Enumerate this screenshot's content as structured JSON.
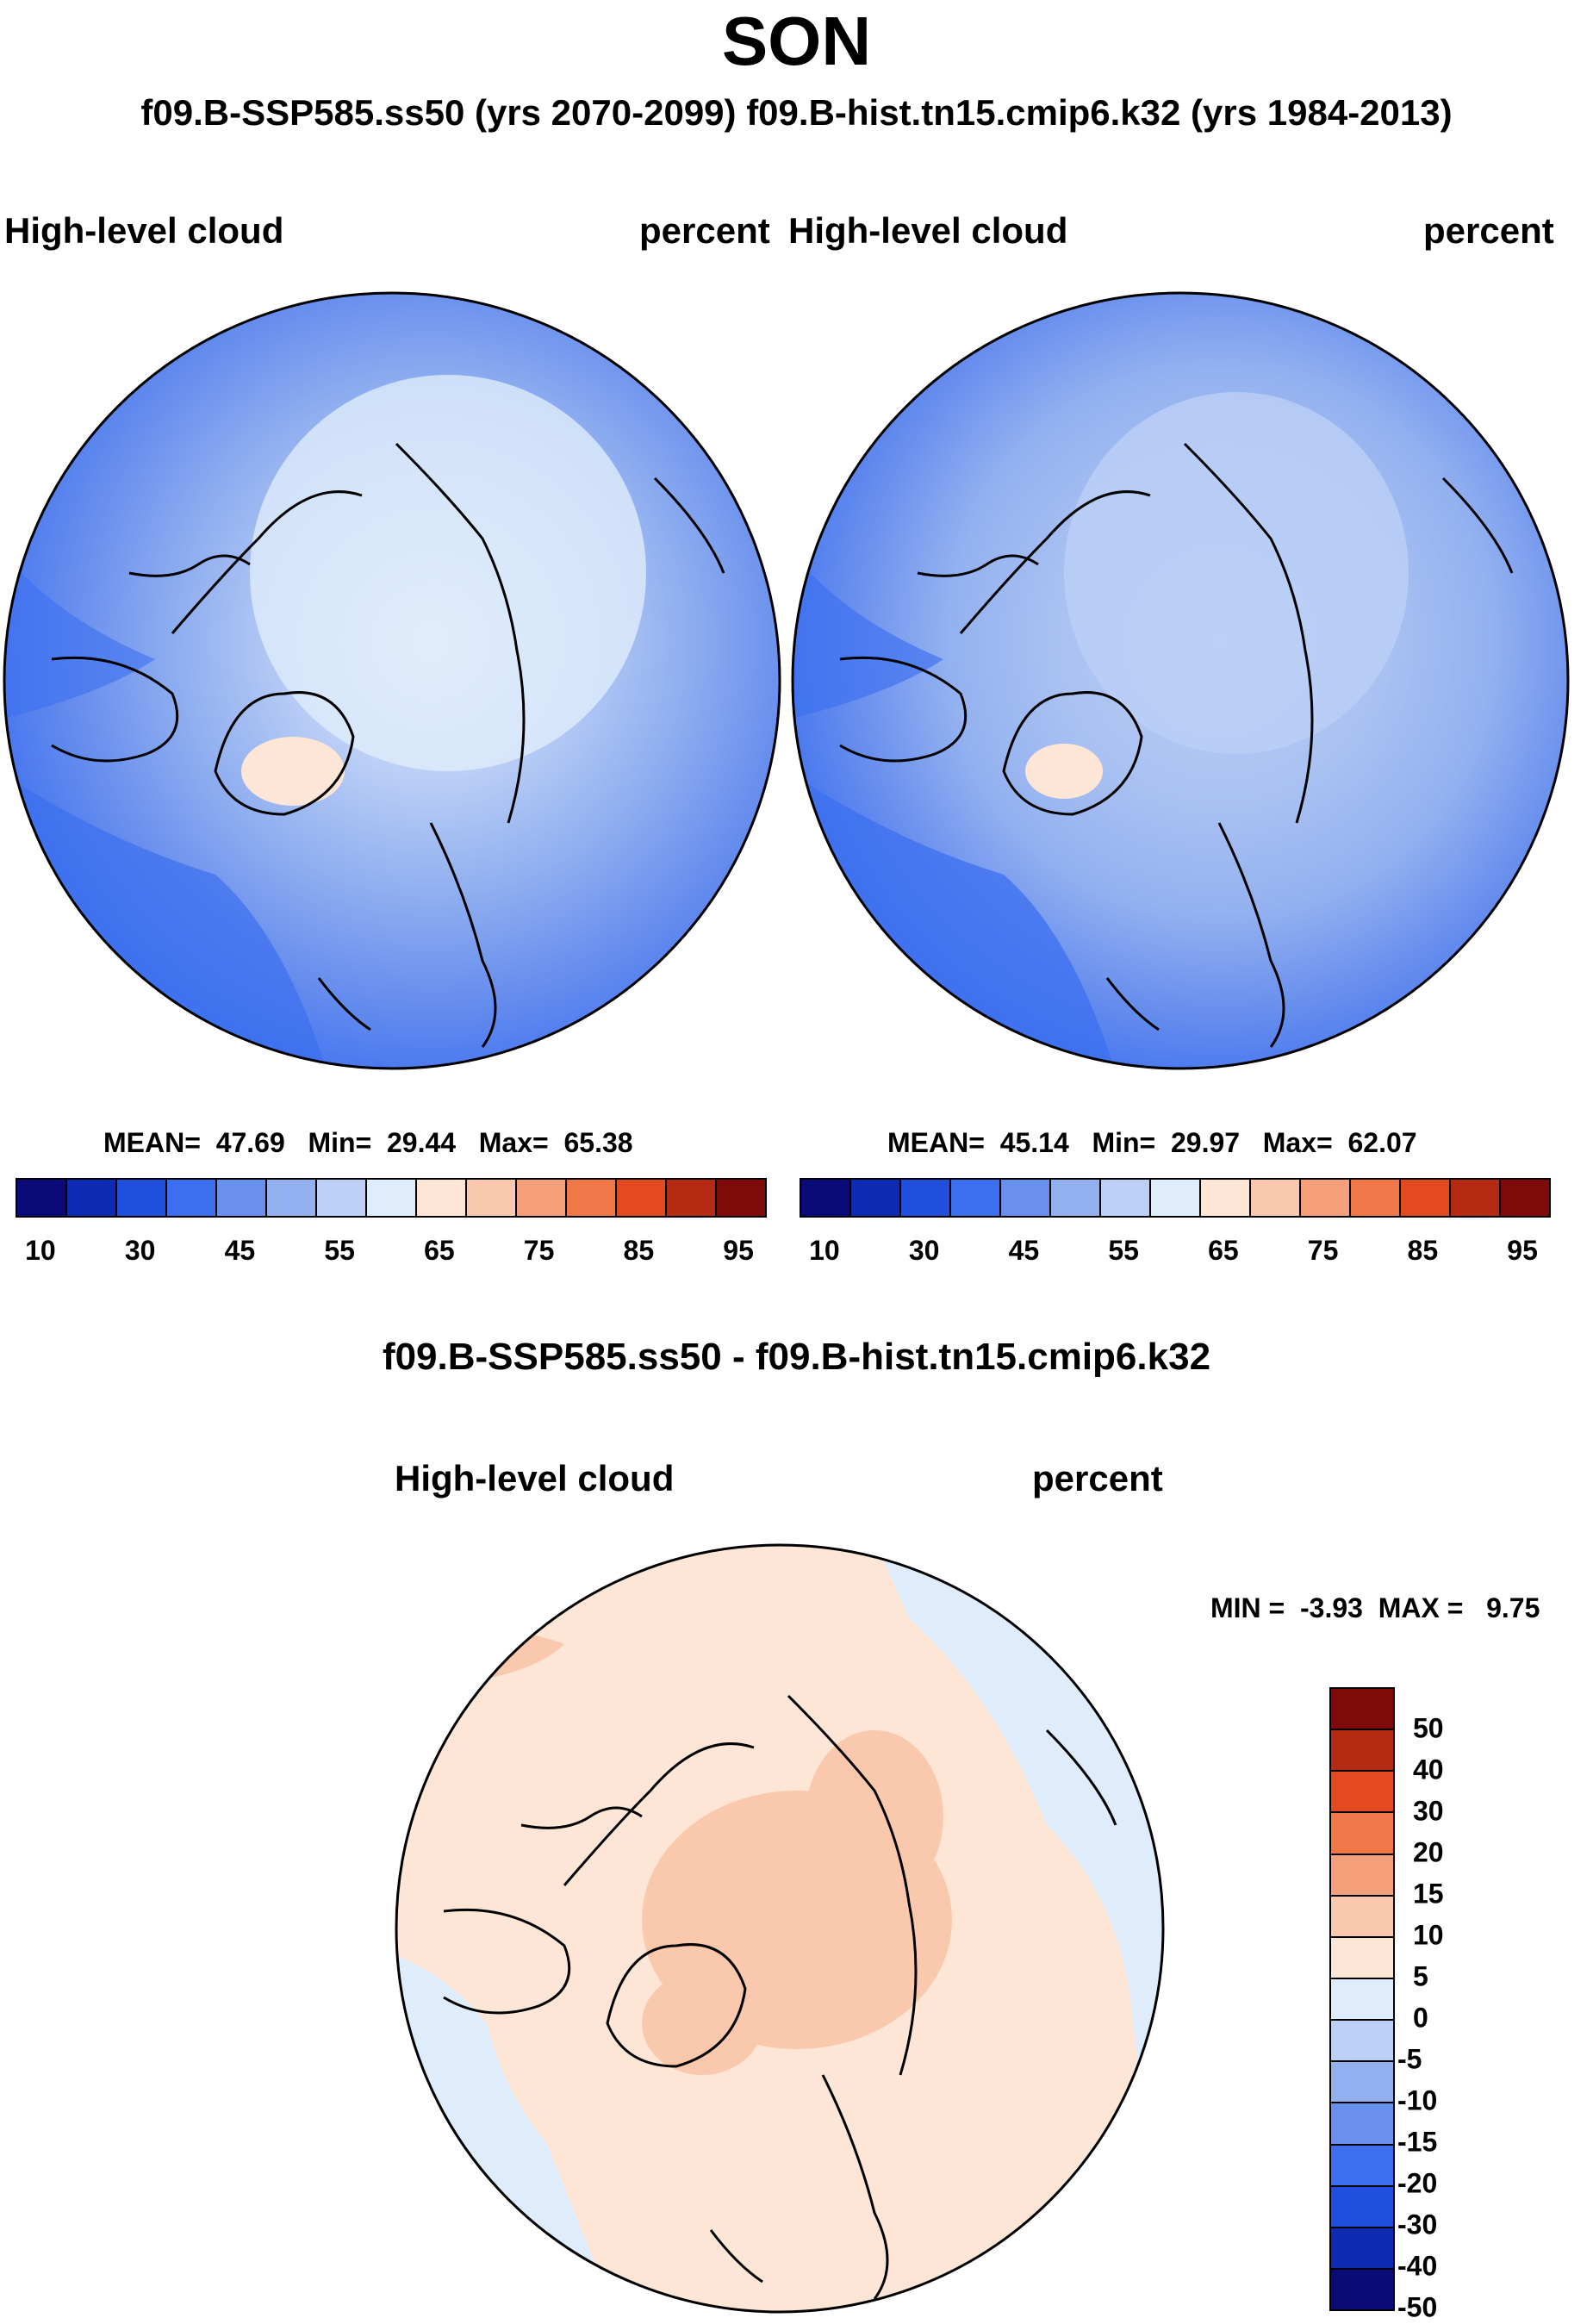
{
  "title": "SON",
  "subtitle": "f09.B-SSP585.ss50 (yrs 2070-2099)  f09.B-hist.tn15.cmip6.k32 (yrs 1984-2013)",
  "diff_title": "f09.B-SSP585.ss50 - f09.B-hist.tn15.cmip6.k32",
  "panels": [
    {
      "variable": "High-level cloud",
      "units": "percent",
      "stats": {
        "mean_label": "MEAN=",
        "mean": "47.69",
        "min_label": "Min=",
        "min": "29.44",
        "max_label": "Max=",
        "max": "65.38"
      }
    },
    {
      "variable": "High-level cloud",
      "units": "percent",
      "stats": {
        "mean_label": "MEAN=",
        "mean": "45.14",
        "min_label": "Min=",
        "min": "29.97",
        "max_label": "Max=",
        "max": "62.07"
      }
    }
  ],
  "diff_panel": {
    "variable": "High-level cloud",
    "units": "percent",
    "stats": {
      "min_label": "MIN =",
      "min": "-3.93",
      "max_label": "MAX =",
      "max": "9.75"
    }
  },
  "colorbar_abs": {
    "colors": [
      "#0a0a78",
      "#0e2bb4",
      "#1f4fdc",
      "#3c6ff0",
      "#6a90ee",
      "#93b1f0",
      "#bccff6",
      "#dfecfb",
      "#fde6d6",
      "#fac9ad",
      "#f5a07a",
      "#f07748",
      "#e44a1f",
      "#b52a12",
      "#7f0a0a"
    ],
    "tick_labels": [
      "10",
      "30",
      "45",
      "55",
      "65",
      "75",
      "85",
      "95"
    ]
  },
  "colorbar_diff": {
    "colors": [
      "#7f0a0a",
      "#b52a12",
      "#e44a1f",
      "#f07748",
      "#f5a07a",
      "#fac9ad",
      "#fde6d6",
      "#dfecfb",
      "#bccff6",
      "#93b1f0",
      "#6a90ee",
      "#3c6ff0",
      "#1f4fdc",
      "#0e2bb4",
      "#0a0a78"
    ],
    "tick_labels": [
      "50",
      "40",
      "30",
      "20",
      "15",
      "10",
      "5",
      "0",
      "-5",
      "-10",
      "-15",
      "-20",
      "-30",
      "-40",
      "-50"
    ]
  }
}
